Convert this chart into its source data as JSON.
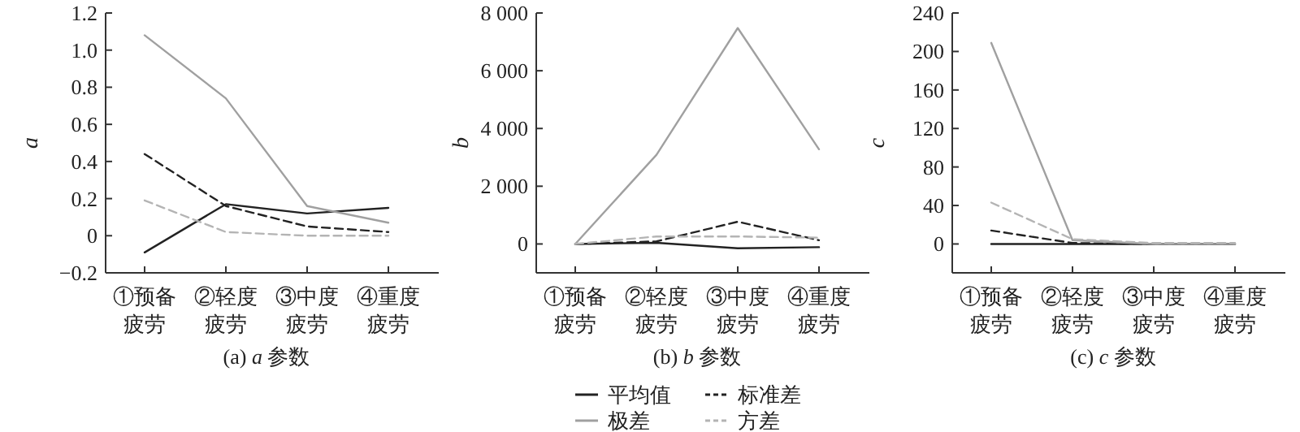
{
  "chart_data": [
    {
      "type": "line",
      "xlabel": "(a) *a* 参数",
      "ylabel": "a",
      "categories": [
        "①预备疲劳",
        "②轻度疲劳",
        "③中度疲劳",
        "④重度疲劳"
      ],
      "ylim": [
        -0.2,
        1.2
      ],
      "yticks": [
        {
          "value": -0.2,
          "label": "−0.2"
        },
        0,
        0.2,
        0.4,
        0.6,
        0.8,
        {
          "value": 1,
          "label": "1.0"
        },
        1.2
      ],
      "grid": false,
      "series": [
        {
          "color": "#222222",
          "line_style": "solid",
          "values": [
            -0.09,
            0.17,
            0.12,
            0.15
          ]
        },
        {
          "color": "#222222",
          "line_style": "dashed",
          "values": [
            0.44,
            0.16,
            0.05,
            0.02
          ]
        },
        {
          "color": "#a0a0a0",
          "line_style": "solid",
          "values": [
            1.08,
            0.74,
            0.16,
            0.07
          ]
        },
        {
          "color": "#b4b4b4",
          "line_style": "dashed",
          "values": [
            0.19,
            0.02,
            0.0,
            0.0
          ]
        }
      ]
    },
    {
      "type": "line",
      "xlabel": "(b) *b* 参数",
      "ylabel": "b",
      "categories": [
        "①预备疲劳",
        "②轻度疲劳",
        "③中度疲劳",
        "④重度疲劳"
      ],
      "ylim": [
        -1000,
        8000
      ],
      "yticks": [
        0,
        {
          "value": 2000,
          "label": "2 000"
        },
        {
          "value": 4000,
          "label": "4 000"
        },
        {
          "value": 6000,
          "label": "6 000"
        },
        {
          "value": 8000,
          "label": "8 000"
        }
      ],
      "grid": false,
      "legend": "bottom",
      "series": [
        {
          "name": "平均值",
          "color": "#222222",
          "line_style": "solid",
          "values": [
            0,
            40,
            -150,
            -110
          ]
        },
        {
          "name": "标准差",
          "color": "#222222",
          "line_style": "dashed",
          "values": [
            0,
            90,
            770,
            130
          ]
        },
        {
          "name": "极差",
          "color": "#a0a0a0",
          "line_style": "solid",
          "values": [
            0,
            3090,
            7480,
            3280
          ]
        },
        {
          "name": "方差",
          "color": "#b4b4b4",
          "line_style": "dashed",
          "values": [
            0,
            260,
            260,
            220
          ]
        }
      ]
    },
    {
      "type": "line",
      "xlabel": "(c) *c* 参数",
      "ylabel": "c",
      "categories": [
        "①预备疲劳",
        "②轻度疲劳",
        "③中度疲劳",
        "④重度疲劳"
      ],
      "ylim": [
        -30,
        240
      ],
      "yticks": [
        0,
        40,
        80,
        120,
        160,
        200,
        240
      ],
      "grid": false,
      "series": [
        {
          "color": "#222222",
          "line_style": "solid",
          "values": [
            0,
            0,
            0,
            0
          ]
        },
        {
          "color": "#222222",
          "line_style": "dashed",
          "values": [
            14,
            1,
            0,
            0
          ]
        },
        {
          "color": "#a0a0a0",
          "line_style": "solid",
          "values": [
            209,
            4,
            0,
            0
          ]
        },
        {
          "color": "#b4b4b4",
          "line_style": "dashed",
          "values": [
            43,
            5,
            1,
            1
          ]
        }
      ]
    }
  ]
}
